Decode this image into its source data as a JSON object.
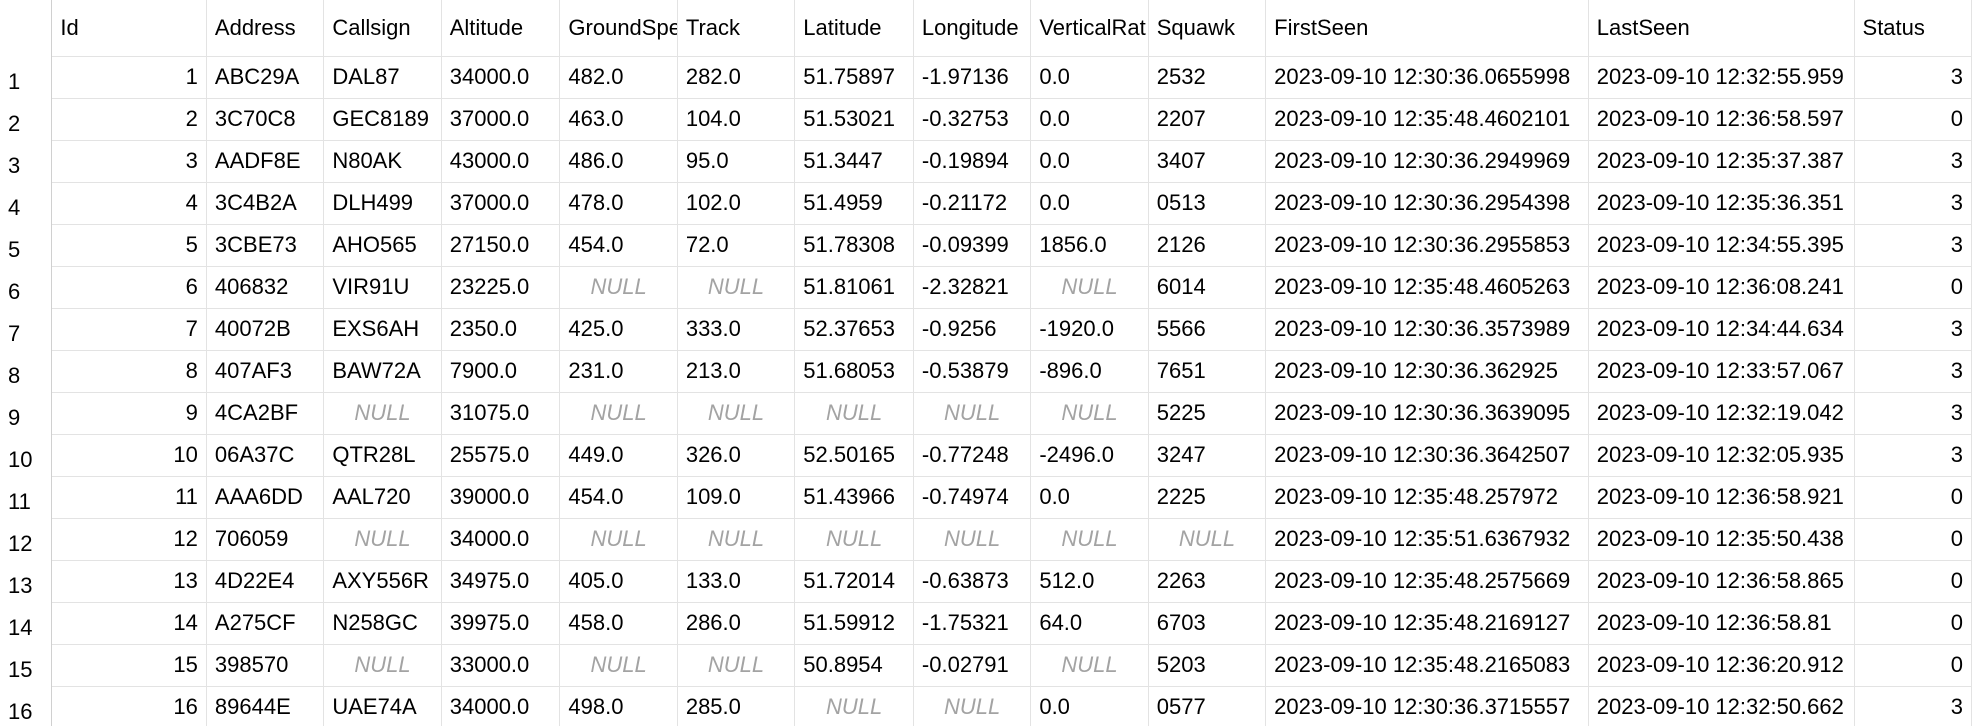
{
  "columns": [
    "Id",
    "Address",
    "Callsign",
    "Altitude",
    "GroundSpe",
    "Track",
    "Latitude",
    "Longitude",
    "VerticalRat",
    "Squawk",
    "FirstSeen",
    "LastSeen",
    "Status"
  ],
  "null_text": "NULL",
  "rows": [
    {
      "rownum": "1",
      "Id": "1",
      "Address": "ABC29A",
      "Callsign": "DAL87",
      "Altitude": "34000.0",
      "GroundSpeed": "482.0",
      "Track": "282.0",
      "Latitude": "51.75897",
      "Longitude": "-1.97136",
      "VerticalRate": "0.0",
      "Squawk": "2532",
      "FirstSeen": "2023-09-10 12:30:36.0655998",
      "LastSeen": "2023-09-10 12:32:55.959",
      "Status": "3"
    },
    {
      "rownum": "2",
      "Id": "2",
      "Address": "3C70C8",
      "Callsign": "GEC8189",
      "Altitude": "37000.0",
      "GroundSpeed": "463.0",
      "Track": "104.0",
      "Latitude": "51.53021",
      "Longitude": "-0.32753",
      "VerticalRate": "0.0",
      "Squawk": "2207",
      "FirstSeen": "2023-09-10 12:35:48.4602101",
      "LastSeen": "2023-09-10 12:36:58.597",
      "Status": "0"
    },
    {
      "rownum": "3",
      "Id": "3",
      "Address": "AADF8E",
      "Callsign": "N80AK",
      "Altitude": "43000.0",
      "GroundSpeed": "486.0",
      "Track": "95.0",
      "Latitude": "51.3447",
      "Longitude": "-0.19894",
      "VerticalRate": "0.0",
      "Squawk": "3407",
      "FirstSeen": "2023-09-10 12:30:36.2949969",
      "LastSeen": "2023-09-10 12:35:37.387",
      "Status": "3"
    },
    {
      "rownum": "4",
      "Id": "4",
      "Address": "3C4B2A",
      "Callsign": "DLH499",
      "Altitude": "37000.0",
      "GroundSpeed": "478.0",
      "Track": "102.0",
      "Latitude": "51.4959",
      "Longitude": "-0.21172",
      "VerticalRate": "0.0",
      "Squawk": "0513",
      "FirstSeen": "2023-09-10 12:30:36.2954398",
      "LastSeen": "2023-09-10 12:35:36.351",
      "Status": "3"
    },
    {
      "rownum": "5",
      "Id": "5",
      "Address": "3CBE73",
      "Callsign": "AHO565",
      "Altitude": "27150.0",
      "GroundSpeed": "454.0",
      "Track": "72.0",
      "Latitude": "51.78308",
      "Longitude": "-0.09399",
      "VerticalRate": "1856.0",
      "Squawk": "2126",
      "FirstSeen": "2023-09-10 12:30:36.2955853",
      "LastSeen": "2023-09-10 12:34:55.395",
      "Status": "3"
    },
    {
      "rownum": "6",
      "Id": "6",
      "Address": "406832",
      "Callsign": "VIR91U",
      "Altitude": "23225.0",
      "GroundSpeed": null,
      "Track": null,
      "Latitude": "51.81061",
      "Longitude": "-2.32821",
      "VerticalRate": null,
      "Squawk": "6014",
      "FirstSeen": "2023-09-10 12:35:48.4605263",
      "LastSeen": "2023-09-10 12:36:08.241",
      "Status": "0"
    },
    {
      "rownum": "7",
      "Id": "7",
      "Address": "40072B",
      "Callsign": "EXS6AH",
      "Altitude": "2350.0",
      "GroundSpeed": "425.0",
      "Track": "333.0",
      "Latitude": "52.37653",
      "Longitude": "-0.9256",
      "VerticalRate": "-1920.0",
      "Squawk": "5566",
      "FirstSeen": "2023-09-10 12:30:36.3573989",
      "LastSeen": "2023-09-10 12:34:44.634",
      "Status": "3"
    },
    {
      "rownum": "8",
      "Id": "8",
      "Address": "407AF3",
      "Callsign": "BAW72A",
      "Altitude": "7900.0",
      "GroundSpeed": "231.0",
      "Track": "213.0",
      "Latitude": "51.68053",
      "Longitude": "-0.53879",
      "VerticalRate": "-896.0",
      "Squawk": "7651",
      "FirstSeen": "2023-09-10 12:30:36.362925",
      "LastSeen": "2023-09-10 12:33:57.067",
      "Status": "3"
    },
    {
      "rownum": "9",
      "Id": "9",
      "Address": "4CA2BF",
      "Callsign": null,
      "Altitude": "31075.0",
      "GroundSpeed": null,
      "Track": null,
      "Latitude": null,
      "Longitude": null,
      "VerticalRate": null,
      "Squawk": "5225",
      "FirstSeen": "2023-09-10 12:30:36.3639095",
      "LastSeen": "2023-09-10 12:32:19.042",
      "Status": "3"
    },
    {
      "rownum": "10",
      "Id": "10",
      "Address": "06A37C",
      "Callsign": "QTR28L",
      "Altitude": "25575.0",
      "GroundSpeed": "449.0",
      "Track": "326.0",
      "Latitude": "52.50165",
      "Longitude": "-0.77248",
      "VerticalRate": "-2496.0",
      "Squawk": "3247",
      "FirstSeen": "2023-09-10 12:30:36.3642507",
      "LastSeen": "2023-09-10 12:32:05.935",
      "Status": "3"
    },
    {
      "rownum": "11",
      "Id": "11",
      "Address": "AAA6DD",
      "Callsign": "AAL720",
      "Altitude": "39000.0",
      "GroundSpeed": "454.0",
      "Track": "109.0",
      "Latitude": "51.43966",
      "Longitude": "-0.74974",
      "VerticalRate": "0.0",
      "Squawk": "2225",
      "FirstSeen": "2023-09-10 12:35:48.257972",
      "LastSeen": "2023-09-10 12:36:58.921",
      "Status": "0"
    },
    {
      "rownum": "12",
      "Id": "12",
      "Address": "706059",
      "Callsign": null,
      "Altitude": "34000.0",
      "GroundSpeed": null,
      "Track": null,
      "Latitude": null,
      "Longitude": null,
      "VerticalRate": null,
      "Squawk": null,
      "FirstSeen": "2023-09-10 12:35:51.6367932",
      "LastSeen": "2023-09-10 12:35:50.438",
      "Status": "0"
    },
    {
      "rownum": "13",
      "Id": "13",
      "Address": "4D22E4",
      "Callsign": "AXY556R",
      "Altitude": "34975.0",
      "GroundSpeed": "405.0",
      "Track": "133.0",
      "Latitude": "51.72014",
      "Longitude": "-0.63873",
      "VerticalRate": "512.0",
      "Squawk": "2263",
      "FirstSeen": "2023-09-10 12:35:48.2575669",
      "LastSeen": "2023-09-10 12:36:58.865",
      "Status": "0"
    },
    {
      "rownum": "14",
      "Id": "14",
      "Address": "A275CF",
      "Callsign": "N258GC",
      "Altitude": "39975.0",
      "GroundSpeed": "458.0",
      "Track": "286.0",
      "Latitude": "51.59912",
      "Longitude": "-1.75321",
      "VerticalRate": "64.0",
      "Squawk": "6703",
      "FirstSeen": "2023-09-10 12:35:48.2169127",
      "LastSeen": "2023-09-10 12:36:58.81",
      "Status": "0"
    },
    {
      "rownum": "15",
      "Id": "15",
      "Address": "398570",
      "Callsign": null,
      "Altitude": "33000.0",
      "GroundSpeed": null,
      "Track": null,
      "Latitude": "50.8954",
      "Longitude": "-0.02791",
      "VerticalRate": null,
      "Squawk": "5203",
      "FirstSeen": "2023-09-10 12:35:48.2165083",
      "LastSeen": "2023-09-10 12:36:20.912",
      "Status": "0"
    },
    {
      "rownum": "16",
      "Id": "16",
      "Address": "89644E",
      "Callsign": "UAE74A",
      "Altitude": "34000.0",
      "GroundSpeed": "498.0",
      "Track": "285.0",
      "Latitude": null,
      "Longitude": null,
      "VerticalRate": "0.0",
      "Squawk": "0577",
      "FirstSeen": "2023-09-10 12:30:36.3715557",
      "LastSeen": "2023-09-10 12:32:50.662",
      "Status": "3"
    }
  ]
}
